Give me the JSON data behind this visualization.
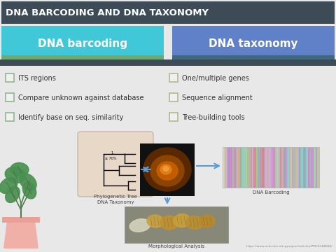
{
  "title": "DNA BARCODING AND DNA TAXONOMY",
  "title_bg": "#3d4b57",
  "title_color": "#ffffff",
  "left_box_bg": "#40c8d8",
  "right_box_bg": "#6080c8",
  "left_stripe_bg": "#70a870",
  "right_stripe_bg": "#406878",
  "divider_color": "#3d4b57",
  "bg_color": "#e8e8e8",
  "left_bullets": [
    "ITS regions",
    "Compare unknown against database",
    "Identify base on seq. similarity"
  ],
  "right_bullets": [
    "One/multiple genes",
    "Sequence alignment",
    "Tree-building tools"
  ],
  "bullet_color": "#333333",
  "checkbox_edge": "#90b890",
  "checkbox_edge2": "#b0b890",
  "bottom_label_left": "Phylogenetic Tree\nDNA Taxonomy",
  "bottom_label_right": "DNA Barcoding",
  "bottom_label_bottom": "Morphological Analysis",
  "url_text": "https://www.ncbi.nlm.nih.gov/pmc/articles/PMC5368684/",
  "url_color": "#888888",
  "arrow_color": "#5b9bd5",
  "phylo_box_bg": "#e8d8c8",
  "barcode_bg": "#dcdce8"
}
